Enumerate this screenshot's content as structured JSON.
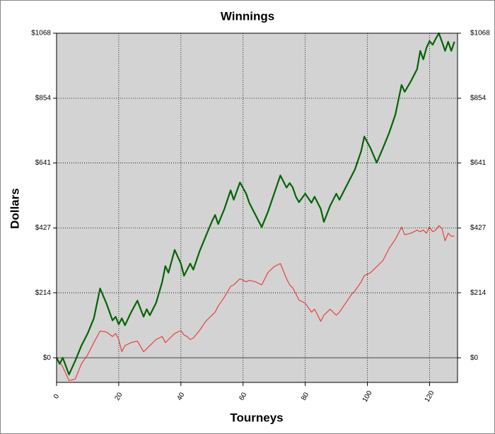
{
  "chart_data": {
    "type": "line",
    "title": "Winnings",
    "xlabel": "Tourneys",
    "ylabel": "Dollars",
    "x": [
      0,
      1,
      2,
      4,
      6,
      8,
      10,
      12,
      14,
      16,
      18,
      19,
      20,
      21,
      22,
      24,
      26,
      28,
      29,
      30,
      32,
      34,
      35,
      36,
      38,
      40,
      41,
      42,
      43,
      44,
      46,
      48,
      50,
      51,
      52,
      54,
      56,
      57,
      59,
      61,
      62,
      64,
      66,
      68,
      70,
      72,
      74,
      75,
      76,
      77,
      78,
      80,
      82,
      83,
      85,
      86,
      88,
      90,
      91,
      93,
      95,
      96,
      98,
      99,
      101,
      103,
      105,
      107,
      109,
      111,
      112,
      114,
      116,
      117,
      118,
      119,
      120,
      121,
      122,
      123,
      124,
      125,
      126,
      127,
      128
    ],
    "series": [
      {
        "color": "#006400",
        "values": [
          0,
          -20,
          0,
          -55,
          -10,
          40,
          80,
          130,
          228,
          180,
          123,
          135,
          110,
          130,
          107,
          150,
          188,
          135,
          160,
          140,
          180,
          250,
          302,
          280,
          355,
          310,
          270,
          290,
          310,
          290,
          350,
          400,
          449,
          470,
          440,
          490,
          551,
          520,
          577,
          540,
          510,
          470,
          430,
          480,
          540,
          600,
          560,
          575,
          560,
          530,
          512,
          540,
          510,
          530,
          490,
          447,
          500,
          540,
          520,
          560,
          600,
          620,
          680,
          728,
          690,
          642,
          690,
          740,
          800,
          898,
          875,
          910,
          950,
          1010,
          982,
          1020,
          1042,
          1030,
          1050,
          1068,
          1040,
          1010,
          1040,
          1010,
          1040
        ]
      },
      {
        "color": "#e84040",
        "values": [
          0,
          -15,
          -30,
          -75,
          -70,
          -20,
          10,
          50,
          88,
          85,
          70,
          80,
          60,
          20,
          40,
          50,
          55,
          20,
          30,
          40,
          60,
          70,
          50,
          60,
          80,
          90,
          75,
          70,
          60,
          65,
          90,
          120,
          140,
          150,
          170,
          200,
          235,
          240,
          260,
          250,
          255,
          250,
          240,
          280,
          300,
          310,
          260,
          240,
          230,
          210,
          190,
          180,
          150,
          160,
          120,
          140,
          160,
          140,
          150,
          180,
          210,
          220,
          250,
          270,
          280,
          300,
          320,
          360,
          390,
          430,
          405,
          410,
          420,
          415,
          420,
          410,
          430,
          415,
          420,
          435,
          425,
          385,
          410,
          400,
          400
        ]
      }
    ],
    "xlim": [
      0,
      129
    ],
    "xticks": [
      0,
      20,
      40,
      60,
      80,
      100,
      120
    ],
    "ylim": [
      -81,
      1068
    ],
    "yticks": [
      {
        "value": 0,
        "label": "$0"
      },
      {
        "value": 214,
        "label": "$214"
      },
      {
        "value": 427,
        "label": "$427"
      },
      {
        "value": 641,
        "label": "$641"
      },
      {
        "value": 854,
        "label": "$854"
      },
      {
        "value": 1068,
        "label": "$1068"
      }
    ],
    "grid": true,
    "background": "#d3d3d3"
  }
}
